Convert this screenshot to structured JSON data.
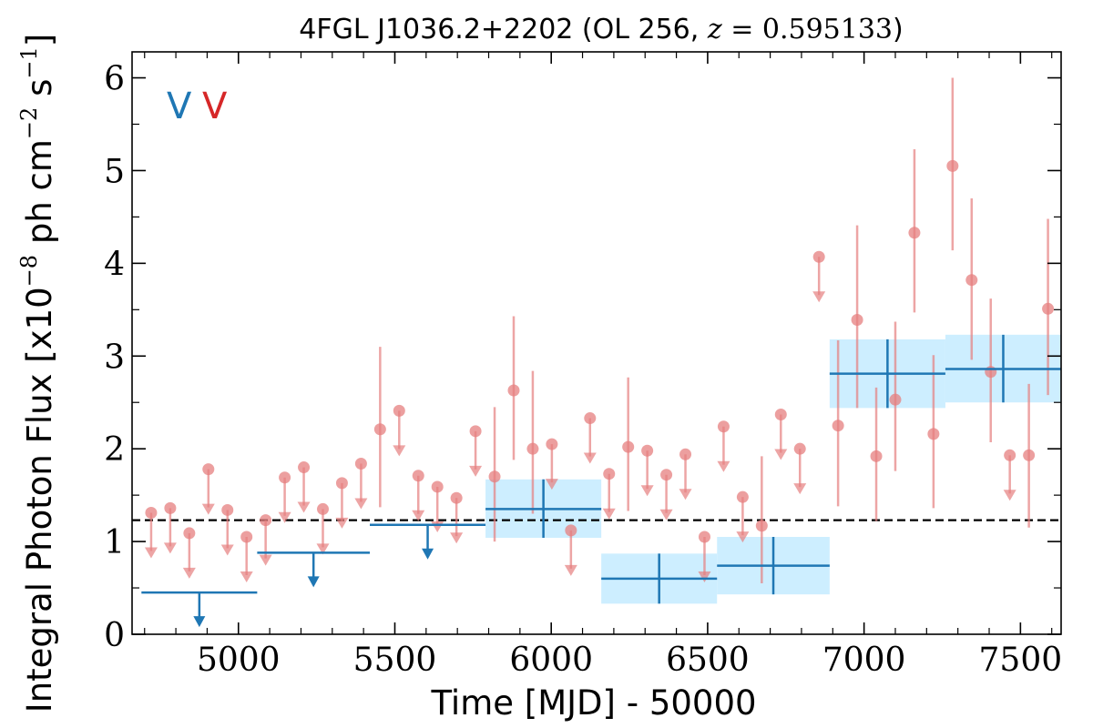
{
  "chart_data": {
    "type": "scatter",
    "title_prefix": "4FGL J1036.2+2202 (OL 256, ",
    "title_math_var": "z",
    "title_math_eq": " = 0.595133",
    "title_suffix": ")",
    "xlabel": "Time [MJD] - 50000",
    "ylabel_main": "Integral Photon Flux [x10",
    "ylabel_exp1": "−8",
    "ylabel_mid": " ph cm",
    "ylabel_exp2": "−2",
    "ylabel_s": " s",
    "ylabel_exp3": "−1",
    "ylabel_end": "]",
    "xlim": [
      4660,
      7630
    ],
    "ylim": [
      0,
      6.28
    ],
    "xticks": [
      5000,
      5500,
      6000,
      6500,
      7000,
      7500
    ],
    "xtick_labels": [
      "5000",
      "5500",
      "6000",
      "6500",
      "7000",
      "7500"
    ],
    "yticks": [
      0,
      1,
      2,
      3,
      4,
      5,
      6
    ],
    "ytick_labels": [
      "0",
      "1",
      "2",
      "3",
      "4",
      "5",
      "6"
    ],
    "reference_line_y": 1.23,
    "legend": [
      {
        "label": "V",
        "color": "#1f77b4"
      },
      {
        "label": "V",
        "color": "#d62728"
      }
    ],
    "colors": {
      "red": "#e57f7f",
      "blue": "#1f77b4",
      "band": "#cdeeff",
      "dashed": "#000000"
    },
    "red_points": [
      {
        "x": 4721,
        "y": 1.31,
        "ul": true
      },
      {
        "x": 4782,
        "y": 1.36,
        "ul": true
      },
      {
        "x": 4843,
        "y": 1.09,
        "ul": true
      },
      {
        "x": 4904,
        "y": 1.78,
        "ul": true
      },
      {
        "x": 4965,
        "y": 1.34,
        "ul": true
      },
      {
        "x": 5026,
        "y": 1.05,
        "ul": true
      },
      {
        "x": 5087,
        "y": 1.23,
        "ul": true
      },
      {
        "x": 5148,
        "y": 1.69,
        "ul": true
      },
      {
        "x": 5209,
        "y": 1.8,
        "ul": true
      },
      {
        "x": 5270,
        "y": 1.35,
        "ul": true
      },
      {
        "x": 5331,
        "y": 1.63,
        "ul": true
      },
      {
        "x": 5392,
        "y": 1.84,
        "ul": true
      },
      {
        "x": 5453,
        "y": 2.21,
        "ul": false,
        "lo": 1.37,
        "hi": 3.1
      },
      {
        "x": 5514,
        "y": 2.41,
        "ul": true
      },
      {
        "x": 5575,
        "y": 1.71,
        "ul": true
      },
      {
        "x": 5636,
        "y": 1.59,
        "ul": true
      },
      {
        "x": 5697,
        "y": 1.47,
        "ul": true
      },
      {
        "x": 5758,
        "y": 2.19,
        "ul": true
      },
      {
        "x": 5819,
        "y": 1.7,
        "ul": false,
        "lo": 1.0,
        "hi": 2.45
      },
      {
        "x": 5880,
        "y": 2.63,
        "ul": false,
        "lo": 1.88,
        "hi": 3.43
      },
      {
        "x": 5941,
        "y": 2.0,
        "ul": false,
        "lo": 1.3,
        "hi": 2.84
      },
      {
        "x": 6002,
        "y": 2.05,
        "ul": true
      },
      {
        "x": 6063,
        "y": 1.12,
        "ul": true
      },
      {
        "x": 6124,
        "y": 2.33,
        "ul": true
      },
      {
        "x": 6185,
        "y": 1.73,
        "ul": true
      },
      {
        "x": 6246,
        "y": 2.02,
        "ul": false,
        "lo": 1.33,
        "hi": 2.77
      },
      {
        "x": 6307,
        "y": 1.98,
        "ul": true
      },
      {
        "x": 6368,
        "y": 1.72,
        "ul": true
      },
      {
        "x": 6429,
        "y": 1.94,
        "ul": true
      },
      {
        "x": 6490,
        "y": 1.05,
        "ul": true
      },
      {
        "x": 6551,
        "y": 2.24,
        "ul": true
      },
      {
        "x": 6612,
        "y": 1.48,
        "ul": true
      },
      {
        "x": 6673,
        "y": 1.17,
        "ul": false,
        "lo": 0.55,
        "hi": 1.92
      },
      {
        "x": 6734,
        "y": 2.37,
        "ul": true
      },
      {
        "x": 6795,
        "y": 2.0,
        "ul": true
      },
      {
        "x": 6856,
        "y": 4.07,
        "ul": true
      },
      {
        "x": 6917,
        "y": 2.25,
        "ul": false,
        "lo": 1.38,
        "hi": 3.17
      },
      {
        "x": 6978,
        "y": 3.39,
        "ul": false,
        "lo": 2.44,
        "hi": 4.41
      },
      {
        "x": 7039,
        "y": 1.92,
        "ul": false,
        "lo": 1.22,
        "hi": 2.66
      },
      {
        "x": 7100,
        "y": 2.53,
        "ul": false,
        "lo": 1.76,
        "hi": 3.37
      },
      {
        "x": 7161,
        "y": 4.33,
        "ul": false,
        "lo": 3.47,
        "hi": 5.23
      },
      {
        "x": 7222,
        "y": 2.16,
        "ul": false,
        "lo": 1.36,
        "hi": 3.01
      },
      {
        "x": 7283,
        "y": 5.05,
        "ul": false,
        "lo": 4.14,
        "hi": 6.0
      },
      {
        "x": 7344,
        "y": 3.82,
        "ul": false,
        "lo": 2.96,
        "hi": 4.7
      },
      {
        "x": 7405,
        "y": 2.83,
        "ul": false,
        "lo": 2.07,
        "hi": 3.62
      },
      {
        "x": 7466,
        "y": 1.93,
        "ul": true
      },
      {
        "x": 7527,
        "y": 1.93,
        "ul": false,
        "lo": 1.15,
        "hi": 2.7
      },
      {
        "x": 7588,
        "y": 3.51,
        "ul": false,
        "lo": 2.58,
        "hi": 4.48
      }
    ],
    "blue_bins": [
      {
        "x0": 4690,
        "x1": 5060,
        "y": 0.45,
        "ul": true,
        "x_arrow": 4875
      },
      {
        "x0": 5060,
        "x1": 5420,
        "y": 0.88,
        "ul": true,
        "x_arrow": 5240
      },
      {
        "x0": 5420,
        "x1": 5790,
        "y": 1.18,
        "ul": true,
        "x_arrow": 5605
      },
      {
        "x0": 5790,
        "x1": 6160,
        "y": 1.35,
        "ul": false,
        "xc": 5975,
        "lo": 1.04,
        "hi": 1.67
      },
      {
        "x0": 6160,
        "x1": 6530,
        "y": 0.6,
        "ul": false,
        "xc": 6345,
        "lo": 0.33,
        "hi": 0.87
      },
      {
        "x0": 6530,
        "x1": 6890,
        "y": 0.74,
        "ul": false,
        "xc": 6710,
        "lo": 0.43,
        "hi": 1.05
      },
      {
        "x0": 6890,
        "x1": 7260,
        "y": 2.81,
        "ul": false,
        "xc": 7075,
        "lo": 2.44,
        "hi": 3.18
      },
      {
        "x0": 7260,
        "x1": 7630,
        "y": 2.86,
        "ul": false,
        "xc": 7445,
        "lo": 2.5,
        "hi": 3.23
      }
    ]
  }
}
